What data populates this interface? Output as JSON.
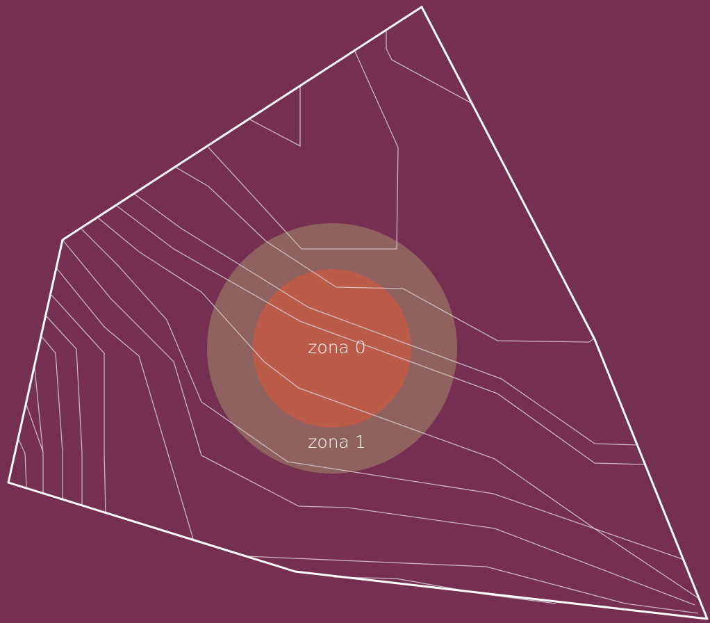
{
  "zones": [
    {
      "label": "zona 0"
    },
    {
      "label": "zona 1"
    }
  ]
}
